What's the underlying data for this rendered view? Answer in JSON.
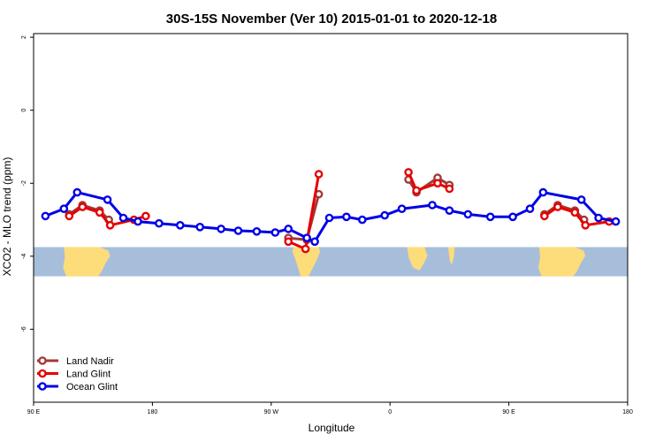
{
  "chart_data": {
    "type": "line",
    "title": "30S-15S November (Ver 10)   2015-01-01 to 2020-12-18",
    "xlabel": "Longitude",
    "ylabel": "XCO2 - MLO trend (ppm)",
    "xlim": [
      90,
      540
    ],
    "ylim": [
      -8,
      2.1
    ],
    "x_ticks": [
      {
        "value": 90,
        "label": "90 E"
      },
      {
        "value": 180,
        "label": "180"
      },
      {
        "value": 270,
        "label": "90 W"
      },
      {
        "value": 360,
        "label": "0"
      },
      {
        "value": 450,
        "label": "90 E"
      },
      {
        "value": 540,
        "label": "180"
      }
    ],
    "y_ticks": [
      {
        "value": 2,
        "label": "2"
      },
      {
        "value": 0,
        "label": "0"
      },
      {
        "value": -2,
        "label": "-2"
      },
      {
        "value": -4,
        "label": "-4"
      },
      {
        "value": -6,
        "label": "-6"
      }
    ],
    "map_band": {
      "y_top": -3.75,
      "y_bottom": -4.55,
      "ocean_color": "#a7bedb",
      "land_color": "#fddc7a"
    },
    "legend_position": "bottom-left",
    "series": [
      {
        "name": "Land Nadir",
        "color": "#a33a3a",
        "segments": [
          [
            [
              117,
              -2.85
            ],
            [
              127,
              -2.6
            ],
            [
              140,
              -2.75
            ],
            [
              147,
              -3.0
            ]
          ],
          [
            [
              283,
              -3.5
            ],
            [
              297,
              -3.55
            ],
            [
              306,
              -2.3
            ]
          ],
          [
            [
              374,
              -1.9
            ],
            [
              380,
              -2.25
            ],
            [
              396,
              -1.85
            ],
            [
              405,
              -2.05
            ]
          ],
          [
            [
              477,
              -2.85
            ],
            [
              487,
              -2.6
            ],
            [
              500,
              -2.75
            ],
            [
              507,
              -3.0
            ]
          ]
        ]
      },
      {
        "name": "Land Glint",
        "color": "#e60000",
        "segments": [
          [
            [
              117,
              -2.9
            ],
            [
              127,
              -2.65
            ],
            [
              140,
              -2.8
            ],
            [
              148,
              -3.15
            ],
            [
              166,
              -3.0
            ],
            [
              175,
              -2.9
            ]
          ],
          [
            [
              283,
              -3.6
            ],
            [
              296,
              -3.8
            ],
            [
              306,
              -1.75
            ]
          ],
          [
            [
              374,
              -1.7
            ],
            [
              380,
              -2.2
            ],
            [
              396,
              -2.0
            ],
            [
              405,
              -2.15
            ]
          ],
          [
            [
              477,
              -2.9
            ],
            [
              487,
              -2.65
            ],
            [
              500,
              -2.8
            ],
            [
              508,
              -3.15
            ],
            [
              526,
              -3.05
            ]
          ]
        ]
      },
      {
        "name": "Ocean Glint",
        "color": "#0000e6",
        "segments": [
          [
            [
              99,
              -2.9
            ],
            [
              113,
              -2.7
            ],
            [
              123,
              -2.25
            ],
            [
              146,
              -2.45
            ],
            [
              158,
              -2.95
            ],
            [
              169,
              -3.05
            ],
            [
              185,
              -3.1
            ],
            [
              201,
              -3.15
            ],
            [
              216,
              -3.2
            ],
            [
              232,
              -3.25
            ],
            [
              245,
              -3.3
            ],
            [
              259,
              -3.32
            ],
            [
              273,
              -3.35
            ],
            [
              283,
              -3.25
            ],
            [
              297,
              -3.5
            ],
            [
              303,
              -3.6
            ],
            [
              314,
              -2.95
            ],
            [
              327,
              -2.92
            ],
            [
              339,
              -3.0
            ],
            [
              356,
              -2.88
            ],
            [
              369,
              -2.7
            ],
            [
              392,
              -2.6
            ],
            [
              405,
              -2.75
            ],
            [
              419,
              -2.85
            ],
            [
              436,
              -2.92
            ],
            [
              453,
              -2.92
            ],
            [
              466,
              -2.7
            ],
            [
              476,
              -2.25
            ],
            [
              505,
              -2.45
            ],
            [
              518,
              -2.95
            ],
            [
              531,
              -3.05
            ]
          ]
        ]
      }
    ]
  }
}
